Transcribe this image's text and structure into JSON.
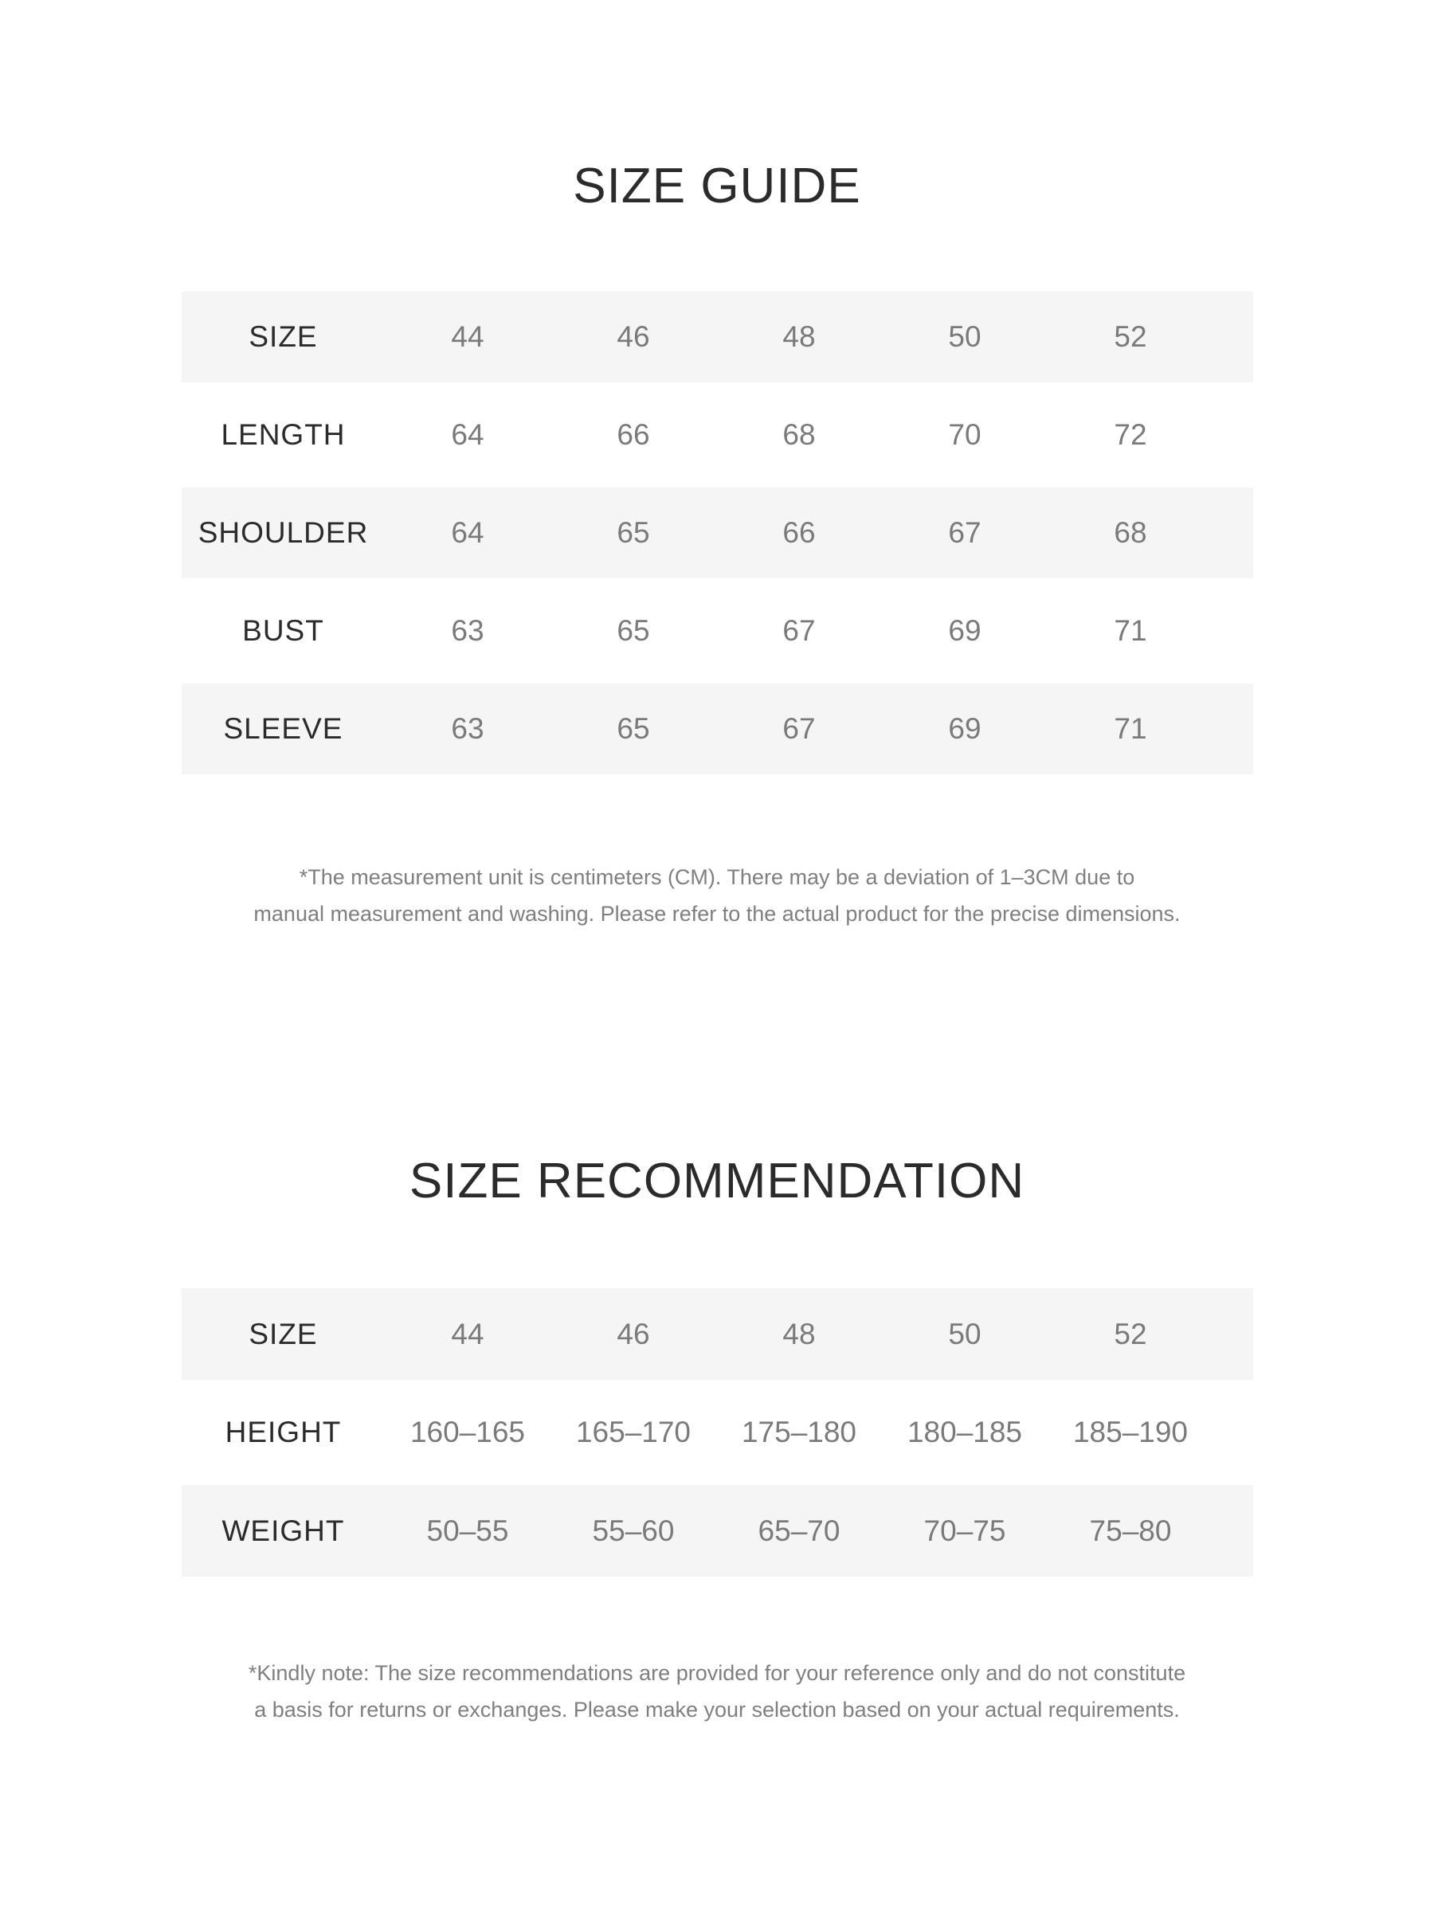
{
  "size_guide": {
    "title": "SIZE GUIDE",
    "rows": [
      {
        "label": "SIZE",
        "values": [
          "44",
          "46",
          "48",
          "50",
          "52"
        ]
      },
      {
        "label": "LENGTH",
        "values": [
          "64",
          "66",
          "68",
          "70",
          "72"
        ]
      },
      {
        "label": "SHOULDER",
        "values": [
          "64",
          "65",
          "66",
          "67",
          "68"
        ]
      },
      {
        "label": "BUST",
        "values": [
          "63",
          "65",
          "67",
          "69",
          "71"
        ]
      },
      {
        "label": "SLEEVE",
        "values": [
          "63",
          "65",
          "67",
          "69",
          "71"
        ]
      }
    ],
    "note_line1": "*The measurement unit is centimeters (CM). There may be a deviation of 1–3CM due to",
    "note_line2": "manual measurement and washing. Please refer to the actual product for the precise dimensions."
  },
  "size_recommendation": {
    "title": "SIZE RECOMMENDATION",
    "rows": [
      {
        "label": "SIZE",
        "values": [
          "44",
          "46",
          "48",
          "50",
          "52"
        ]
      },
      {
        "label": "HEIGHT",
        "values": [
          "160–165",
          "165–170",
          "175–180",
          "180–185",
          "185–190"
        ]
      },
      {
        "label": "WEIGHT",
        "values": [
          "50–55",
          "55–60",
          "65–70",
          "70–75",
          "75–80"
        ]
      }
    ],
    "note_line1": "*Kindly note: The size recommendations are provided for your reference only and do not constitute",
    "note_line2": "a basis for returns or exchanges. Please make your selection based on your actual requirements."
  },
  "colors": {
    "row_shade": "#f5f5f5",
    "label_text": "#2b2b2b",
    "value_text": "#7a7a7a"
  }
}
